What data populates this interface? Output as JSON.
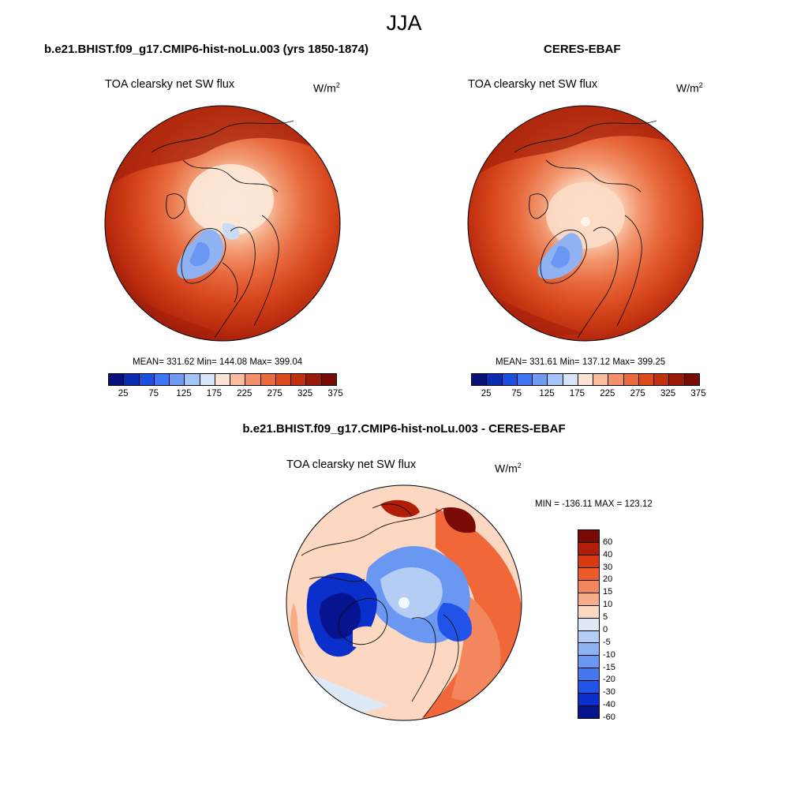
{
  "season": "JJA",
  "panels": {
    "model": {
      "title": "b.e21.BHIST.f09_g17.CMIP6-hist-noLu.003 (yrs 1850-1874)",
      "field": "TOA clearsky net SW flux",
      "units_base": "W/m",
      "units_exp": "2",
      "stats": "MEAN= 331.62  Min= 144.08  Max= 399.04"
    },
    "obs": {
      "title": "CERES-EBAF",
      "field": "TOA clearsky net SW flux",
      "units_base": "W/m",
      "units_exp": "2",
      "stats": "MEAN= 331.61  Min= 137.12  Max= 399.25"
    },
    "diff": {
      "title": "b.e21.BHIST.f09_g17.CMIP6-hist-noLu.003 - CERES-EBAF",
      "field": "TOA clearsky net SW flux",
      "units_base": "W/m",
      "units_exp": "2",
      "stats": "MIN = -136.11 MAX = 123.12"
    }
  },
  "colorbar_abs": {
    "colors": [
      "#08107a",
      "#0a2cb0",
      "#1a4fe0",
      "#3f75f5",
      "#6e9cf5",
      "#a3c4f7",
      "#d6e6f8",
      "#fde4d2",
      "#f9bc9c",
      "#f3906b",
      "#ea6a3e",
      "#dd4a1c",
      "#c2300f",
      "#9a1a08",
      "#780a05"
    ],
    "tick_labels": [
      "25",
      "75",
      "125",
      "175",
      "225",
      "275",
      "325",
      "375"
    ]
  },
  "colorbar_diff": {
    "colors": [
      "#7a0a05",
      "#b21d08",
      "#d93813",
      "#ee5b2b",
      "#f3865c",
      "#f7ac88",
      "#fcd8c2",
      "#dde9f7",
      "#b4cdf4",
      "#8eb3f2",
      "#6a97f1",
      "#4578ee",
      "#2253e8",
      "#0b2fca",
      "#07148f"
    ],
    "tick_labels": [
      "60",
      "40",
      "30",
      "20",
      "15",
      "10",
      "5",
      "0",
      "-5",
      "-10",
      "-15",
      "-20",
      "-30",
      "-40",
      "-60"
    ]
  }
}
